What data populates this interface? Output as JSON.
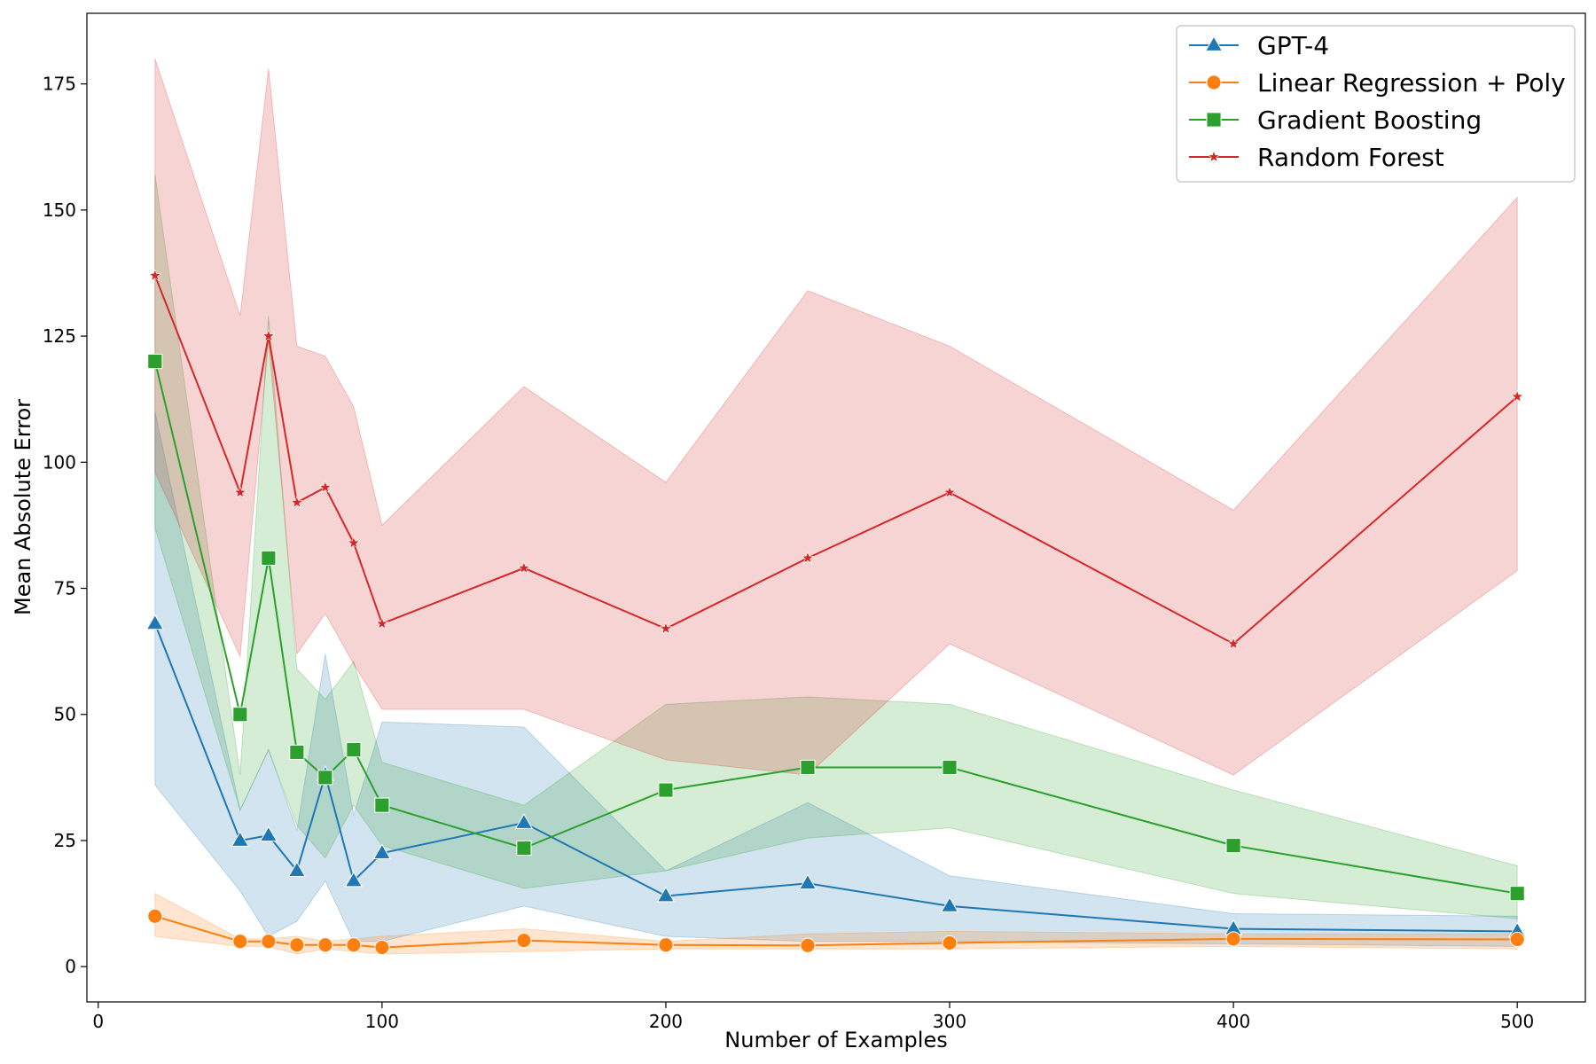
{
  "chart_data": {
    "type": "line",
    "xlabel": "Number of Examples",
    "ylabel": "Mean Absolute Error",
    "xlim": [
      -4,
      524
    ],
    "ylim": [
      -7,
      189
    ],
    "x_ticks": [
      0,
      100,
      200,
      300,
      400,
      500
    ],
    "y_ticks": [
      0,
      25,
      50,
      75,
      100,
      125,
      150,
      175
    ],
    "grid": false,
    "legend_position": "top-right",
    "x": [
      20,
      50,
      60,
      70,
      80,
      90,
      100,
      150,
      200,
      250,
      300,
      400,
      500
    ],
    "series": [
      {
        "name": "GPT-4",
        "color": "#1f77b4",
        "marker": "triangle",
        "values": [
          68,
          25,
          26,
          19,
          38,
          17,
          22.5,
          28.5,
          14,
          16.5,
          12,
          7.5,
          7
        ],
        "lower": [
          36,
          15,
          6,
          9,
          17,
          5,
          5,
          12,
          6,
          5,
          5,
          4.5,
          4
        ],
        "upper": [
          110,
          31,
          43,
          27,
          62,
          30,
          48.5,
          47.5,
          19,
          32.5,
          18,
          10.5,
          10
        ]
      },
      {
        "name": "Linear Regression + Poly",
        "color": "#ff7f0e",
        "marker": "circle",
        "values": [
          10,
          5,
          5,
          4.3,
          4.3,
          4.3,
          3.8,
          5.2,
          4.3,
          4.2,
          4.7,
          5.5,
          5.4
        ],
        "lower": [
          6,
          4,
          4,
          2.5,
          3.5,
          3,
          2.5,
          3,
          3.5,
          3.5,
          3.5,
          4,
          3.5
        ],
        "upper": [
          14.5,
          5.5,
          5.5,
          6,
          5,
          5.5,
          6,
          7.5,
          5,
          6.5,
          7,
          6.5,
          6.5
        ]
      },
      {
        "name": "Gradient Boosting",
        "color": "#2ca02c",
        "marker": "square",
        "values": [
          120,
          50,
          81,
          42.5,
          37.5,
          43,
          32,
          23.5,
          35,
          39.5,
          39.5,
          24,
          14.5
        ],
        "lower": [
          87,
          31,
          43,
          28,
          21.5,
          32,
          24,
          15.5,
          19,
          25.5,
          27.5,
          14.5,
          9.5
        ],
        "upper": [
          157,
          38,
          129,
          59,
          53,
          60.5,
          40.5,
          32,
          52,
          53.5,
          52,
          35,
          20
        ]
      },
      {
        "name": "Random Forest",
        "color": "#d62728",
        "marker": "star",
        "values": [
          137,
          94,
          125,
          92,
          95,
          84,
          68,
          79,
          67,
          81,
          94,
          64,
          113
        ],
        "lower": [
          98,
          61.5,
          124,
          62,
          70,
          60,
          51,
          51,
          41,
          38,
          64,
          38,
          78.5
        ],
        "upper": [
          180,
          129,
          178,
          123,
          121,
          111,
          87.5,
          115,
          96,
          134,
          123,
          90.5,
          152.5
        ]
      }
    ]
  }
}
